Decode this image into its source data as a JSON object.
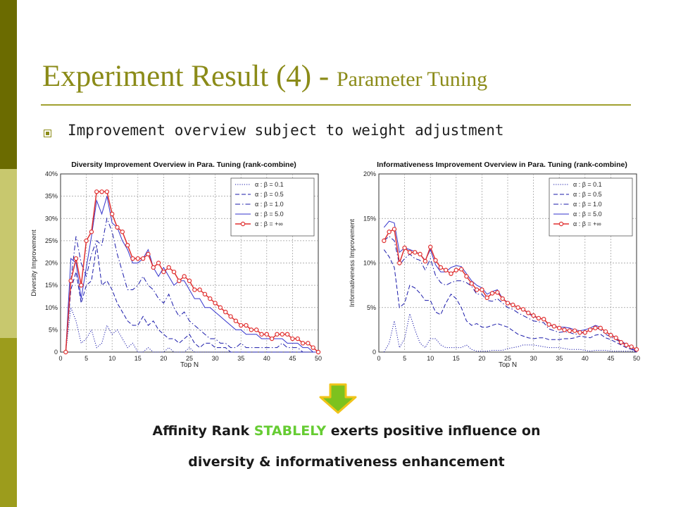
{
  "slide": {
    "title_main": "Experiment Result (4) - ",
    "title_sub": "Parameter Tuning",
    "bullet": "Improvement overview subject to weight adjustment",
    "message_line1_pre": "Affinity Rank ",
    "message_line1_accent": "STABLELY",
    "message_line1_post": " exerts positive influence on",
    "message_line2": "diversity & informativeness enhancement"
  },
  "colors": {
    "sidebar_dark": "#6b6b00",
    "sidebar_light": "#c8c86e",
    "sidebar_mid": "#9c9c1c",
    "title": "#8b8b18",
    "accent": "#66cc33",
    "arrow_fill": "#7dc21e",
    "arrow_border": "#f0c419"
  },
  "icons": {
    "bullet": "square-bullet-icon",
    "arrow": "down-arrow-icon"
  },
  "chart_data": [
    {
      "type": "line",
      "title": "Diversity Improvement Overview in Para. Tuning (rank-combine)",
      "xlabel": "Top N",
      "ylabel": "Diversity Improvement",
      "xlim": [
        0,
        50
      ],
      "ylim": [
        0,
        40
      ],
      "xticks": [
        0,
        5,
        10,
        15,
        20,
        25,
        30,
        35,
        40,
        45,
        50
      ],
      "yticks": [
        0,
        5,
        10,
        15,
        20,
        25,
        30,
        35,
        40
      ],
      "ytick_labels": [
        "0",
        "5%",
        "10%",
        "15%",
        "20%",
        "25%",
        "30%",
        "35%",
        "40%"
      ],
      "grid": true,
      "legend_position": "top-right",
      "x": [
        1,
        2,
        3,
        4,
        5,
        6,
        7,
        8,
        9,
        10,
        11,
        12,
        13,
        14,
        15,
        16,
        17,
        18,
        19,
        20,
        21,
        22,
        23,
        24,
        25,
        26,
        27,
        28,
        29,
        30,
        31,
        32,
        33,
        34,
        35,
        36,
        37,
        38,
        39,
        40,
        41,
        42,
        43,
        44,
        45,
        46,
        47,
        48,
        49,
        50
      ],
      "series": [
        {
          "name": "α : β = 0.1",
          "style": "dotted",
          "color": "#1a1aaa",
          "marker": "none",
          "values": [
            0,
            10,
            7,
            2,
            3,
            5,
            1,
            2,
            6,
            4,
            5,
            3,
            1,
            2,
            0,
            0,
            1,
            0,
            0,
            0,
            1,
            0,
            0,
            0,
            1,
            0,
            0,
            0,
            0,
            0,
            0,
            0,
            0,
            0,
            0,
            0,
            0,
            0,
            0,
            0,
            0,
            0,
            0,
            0,
            0,
            0,
            0,
            0,
            0,
            0
          ]
        },
        {
          "name": "α : β = 0.5",
          "style": "dashed",
          "color": "#1a1aaa",
          "marker": "none",
          "values": [
            0,
            14,
            18,
            11,
            15,
            16,
            24,
            15,
            16,
            14,
            11,
            9,
            7,
            6,
            6,
            8,
            6,
            7,
            5,
            4,
            3,
            3,
            2,
            3,
            4,
            2,
            1,
            2,
            2,
            1,
            1,
            1,
            0,
            0,
            0,
            0,
            0,
            0,
            0,
            0,
            0,
            0,
            0,
            0,
            0,
            0,
            0,
            0,
            0,
            0
          ]
        },
        {
          "name": "α : β = 1.0",
          "style": "dashdot",
          "color": "#1a1aaa",
          "marker": "none",
          "values": [
            0,
            16,
            26,
            20,
            17,
            22,
            25,
            24,
            30,
            27,
            22,
            18,
            14,
            14,
            15,
            17,
            15,
            14,
            12,
            11,
            13,
            10,
            8,
            9,
            7,
            6,
            5,
            4,
            3,
            3,
            2,
            2,
            1,
            1,
            2,
            1,
            1,
            1,
            1,
            1,
            1,
            1,
            2,
            1,
            1,
            1,
            0,
            0,
            0,
            0
          ]
        },
        {
          "name": "α : β = 5.0",
          "style": "solid",
          "color": "#3333cc",
          "marker": "none",
          "values": [
            0,
            21,
            20,
            12,
            19,
            26,
            34,
            31,
            35,
            29,
            28,
            25,
            23,
            20,
            20,
            21,
            23,
            19,
            17,
            19,
            17,
            15,
            16,
            16,
            14,
            12,
            12,
            10,
            10,
            9,
            8,
            7,
            6,
            5,
            5,
            4,
            4,
            4,
            3,
            3,
            3,
            3,
            3,
            2,
            2,
            2,
            1,
            1,
            0,
            0
          ]
        },
        {
          "name": "α : β = +∞",
          "style": "solid",
          "color": "#e03030",
          "marker": "circle",
          "values": [
            0,
            16,
            21,
            15,
            25,
            27,
            36,
            36,
            36,
            31,
            28,
            27,
            24,
            21,
            21,
            21,
            22,
            19,
            20,
            18,
            19,
            18,
            16,
            17,
            16,
            14,
            14,
            13,
            12,
            11,
            10,
            9,
            8,
            7,
            6,
            6,
            5,
            5,
            4,
            4,
            3,
            4,
            4,
            4,
            3,
            3,
            2,
            2,
            1,
            0
          ]
        }
      ]
    },
    {
      "type": "line",
      "title": "Informativeness Improvement Overview in Para. Tuning (rank-combine)",
      "xlabel": "Top N",
      "ylabel": "Informativeness Improvement",
      "xlim": [
        0,
        50
      ],
      "ylim": [
        0,
        20
      ],
      "xticks": [
        0,
        5,
        10,
        15,
        20,
        25,
        30,
        35,
        40,
        45,
        50
      ],
      "yticks": [
        0,
        5,
        10,
        15,
        20
      ],
      "ytick_labels": [
        "0",
        "5%",
        "10%",
        "15%",
        "20%"
      ],
      "grid": true,
      "legend_position": "top-right",
      "x": [
        1,
        2,
        3,
        4,
        5,
        6,
        7,
        8,
        9,
        10,
        11,
        12,
        13,
        14,
        15,
        16,
        17,
        18,
        19,
        20,
        21,
        22,
        23,
        24,
        25,
        26,
        27,
        28,
        29,
        30,
        31,
        32,
        33,
        34,
        35,
        36,
        37,
        38,
        39,
        40,
        41,
        42,
        43,
        44,
        45,
        46,
        47,
        48,
        49,
        50
      ],
      "series": [
        {
          "name": "α : β = 0.1",
          "style": "dotted",
          "color": "#1a1aaa",
          "marker": "none",
          "values": [
            0,
            1,
            3.5,
            0.5,
            1.5,
            4.3,
            2.5,
            1,
            0.5,
            1.5,
            1.5,
            0.8,
            0.5,
            0.5,
            0.5,
            0.5,
            0.8,
            0.3,
            0.1,
            0.1,
            0.1,
            0.2,
            0.2,
            0.2,
            0.4,
            0.5,
            0.6,
            0.8,
            0.8,
            0.8,
            0.7,
            0.6,
            0.5,
            0.5,
            0.5,
            0.4,
            0.3,
            0.3,
            0.3,
            0.2,
            0.1,
            0.2,
            0.2,
            0.2,
            0.1,
            0.1,
            0.1,
            0.1,
            0.1,
            0
          ]
        },
        {
          "name": "α : β = 0.5",
          "style": "dashed",
          "color": "#1a1aaa",
          "marker": "none",
          "values": [
            11.5,
            10.7,
            9.5,
            5,
            5.5,
            7.5,
            7.2,
            6.6,
            5.8,
            5.8,
            4.5,
            4.2,
            5.5,
            6.5,
            6,
            5,
            3.5,
            3,
            3.2,
            2.8,
            2.8,
            3,
            3.2,
            3,
            2.8,
            2.4,
            2,
            1.8,
            1.6,
            1.5,
            1.6,
            1.6,
            1.4,
            1.4,
            1.4,
            1.5,
            1.5,
            1.6,
            1.8,
            1.7,
            1.6,
            1.9,
            2,
            1.6,
            1.4,
            1.1,
            0.8,
            0.5,
            0.3,
            0
          ]
        },
        {
          "name": "α : β = 1.0",
          "style": "dashdot",
          "color": "#1a1aaa",
          "marker": "none",
          "values": [
            12.5,
            13,
            12.5,
            9.8,
            10.5,
            11,
            10.5,
            10.3,
            9.2,
            10.5,
            8.6,
            7.8,
            7.5,
            7.8,
            8,
            8,
            7.8,
            7.4,
            6.5,
            6.5,
            5.8,
            5.7,
            6,
            5.5,
            5,
            4.8,
            4.4,
            4.1,
            3.8,
            3.5,
            3.4,
            3.3,
            2.6,
            2.4,
            2.2,
            2.3,
            2.2,
            2,
            2.1,
            2.2,
            2.5,
            2.8,
            2.5,
            2,
            1.7,
            1.4,
            1.1,
            0.7,
            0.4,
            0
          ]
        },
        {
          "name": "α : β = 5.0",
          "style": "solid",
          "color": "#3333cc",
          "marker": "none",
          "values": [
            14,
            14.7,
            14.5,
            11.2,
            11.7,
            11.5,
            11.3,
            11,
            10.3,
            11.5,
            9.8,
            9,
            9,
            9.5,
            9.7,
            9.6,
            8.8,
            8,
            7.5,
            7.2,
            6.5,
            6.8,
            7,
            6,
            5.6,
            5.3,
            5,
            4.8,
            4.3,
            4,
            3.8,
            3.7,
            3,
            2.9,
            2.8,
            2.8,
            2.7,
            2.5,
            2.4,
            2.5,
            2.7,
            3,
            2.8,
            2.2,
            2,
            1.6,
            1.2,
            0.9,
            0.5,
            0
          ]
        },
        {
          "name": "α : β = +∞",
          "style": "solid",
          "color": "#e03030",
          "marker": "circle",
          "values": [
            12.5,
            13.5,
            13.8,
            10,
            11.7,
            11.2,
            11.2,
            11,
            10.2,
            11.8,
            10.3,
            9.5,
            9.2,
            8.8,
            9.2,
            9.3,
            8.5,
            7.7,
            7,
            7,
            6.1,
            6.6,
            6.7,
            6,
            5.5,
            5.3,
            5,
            4.8,
            4.4,
            4.1,
            3.8,
            3.7,
            3.1,
            2.9,
            2.7,
            2.5,
            2.4,
            2.4,
            2.2,
            2.2,
            2.5,
            2.7,
            2.7,
            2.3,
            1.9,
            1.6,
            1.1,
            0.8,
            0.6,
            0.3
          ]
        }
      ]
    }
  ]
}
